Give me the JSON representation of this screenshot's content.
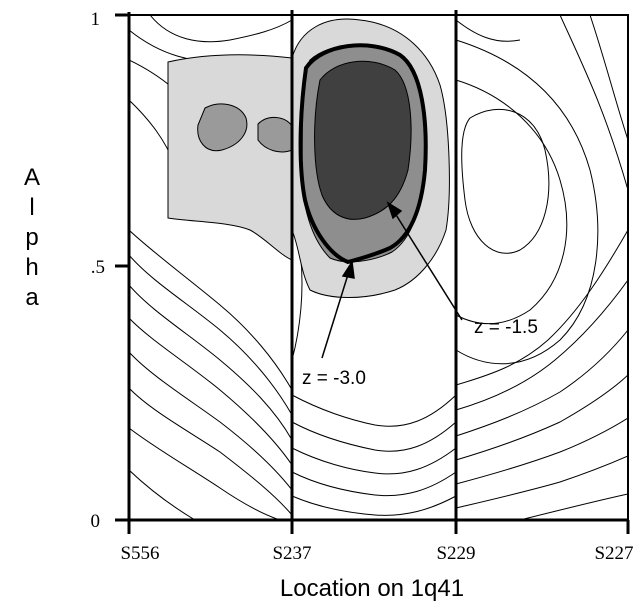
{
  "chart_data": {
    "type": "contour",
    "xlabel": "Location on 1q41",
    "ylabel": "Alpha",
    "x_ticks": [
      "S556",
      "S237",
      "S229",
      "S227"
    ],
    "y_ticks": [
      "0",
      ".5",
      "1"
    ],
    "ylim": [
      0,
      1
    ],
    "annotations": [
      {
        "text": "z = -3.0",
        "label_at": {
          "x": "S237",
          "alpha": 0.29
        },
        "points_to": {
          "x": "S237",
          "alpha": 0.52
        }
      },
      {
        "text": "z = -1.5",
        "label_at": {
          "x": "S229",
          "alpha": 0.39
        },
        "points_to": {
          "x": "S237",
          "alpha": 0.64
        }
      }
    ],
    "shading": [
      {
        "region": "z <= -3.0",
        "color": "#404040"
      },
      {
        "region": "-3.0 < z <= -1.5",
        "color": "#8e8e8e"
      },
      {
        "region": "weaker negative z",
        "color": "#d9d9d9"
      }
    ]
  }
}
